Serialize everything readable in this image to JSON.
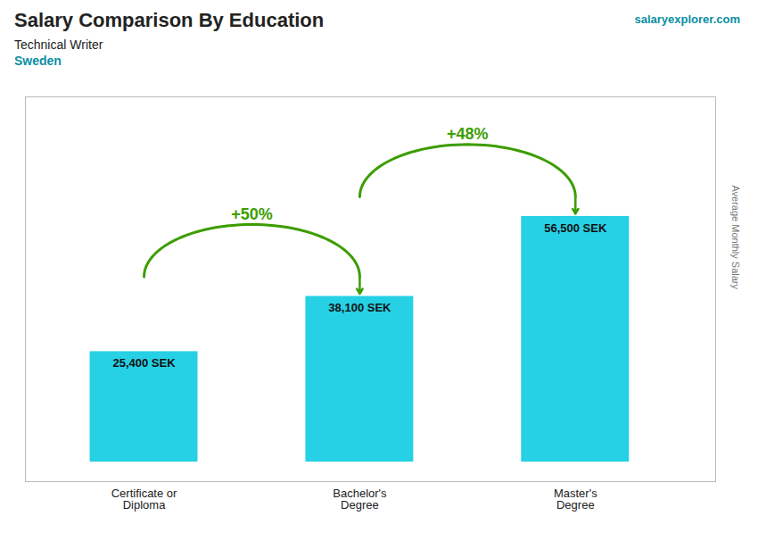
{
  "chart_data": {
    "type": "bar",
    "title": "Salary Comparison By Education",
    "subtitle": [
      "Technical Writer",
      "Sweden"
    ],
    "ylabel": "Average Monthly Salary",
    "categories": [
      "Certificate or\nDiploma",
      "Bachelor's\nDegree",
      "Master's\nDegree"
    ],
    "values": [
      25400,
      38100,
      56500
    ],
    "value_labels": [
      "25,400 SEK",
      "38,100 SEK",
      "56,500 SEK"
    ],
    "data_labels": true,
    "tick_labels": "x",
    "color": "#00c8e0",
    "ylim": [
      -4500,
      84000
    ],
    "annotations": [
      {
        "text": "salaryexplorer.com"
      },
      {
        "text": "+50%",
        "from": "Certificate or\nDiploma",
        "to": "Bachelor's\nDegree"
      },
      {
        "text": "+48%",
        "from": "Bachelor's\nDegree",
        "to": "Master's\nDegree"
      }
    ]
  }
}
